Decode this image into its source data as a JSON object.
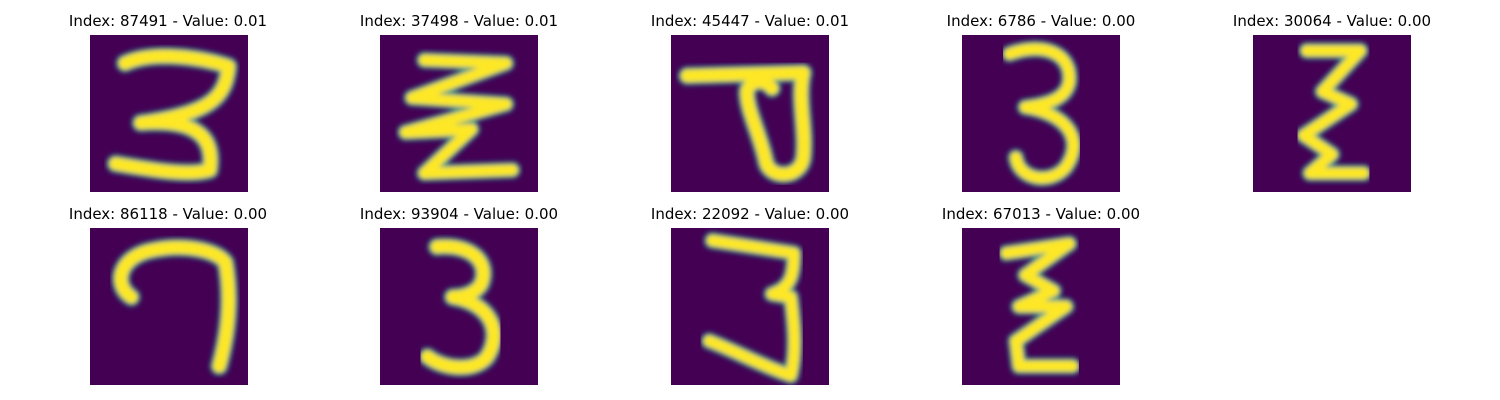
{
  "figure": {
    "colormap": "viridis",
    "background_color": "#440154",
    "stroke_colors": [
      "#fde725",
      "#5ec962",
      "#21918c"
    ]
  },
  "panels": [
    {
      "title": "Index: 87491 - Value: 0.01",
      "index": 87491,
      "value": 0.01,
      "glyph": "3-wide"
    },
    {
      "title": "Index: 37498 - Value: 0.01",
      "index": 37498,
      "value": 0.01,
      "glyph": "zigzag"
    },
    {
      "title": "Index: 45447 - Value: 0.01",
      "index": 45447,
      "value": 0.01,
      "glyph": "loop-with-bar"
    },
    {
      "title": "Index: 6786 - Value: 0.00",
      "index": 6786,
      "value": 0.0,
      "glyph": "3-narrow"
    },
    {
      "title": "Index: 30064 - Value: 0.00",
      "index": 30064,
      "value": 0.0,
      "glyph": "zigzag-narrow"
    },
    {
      "title": "Index: 86118 - Value: 0.00",
      "index": 86118,
      "value": 0.0,
      "glyph": "7-hook"
    },
    {
      "title": "Index: 93904 - Value: 0.00",
      "index": 93904,
      "value": 0.0,
      "glyph": "3-narrow"
    },
    {
      "title": "Index: 22092 - Value: 0.00",
      "index": 22092,
      "value": 0.0,
      "glyph": "3-tall"
    },
    {
      "title": "Index: 67013 - Value: 0.00",
      "index": 67013,
      "value": 0.0,
      "glyph": "zigzag-tall"
    }
  ]
}
